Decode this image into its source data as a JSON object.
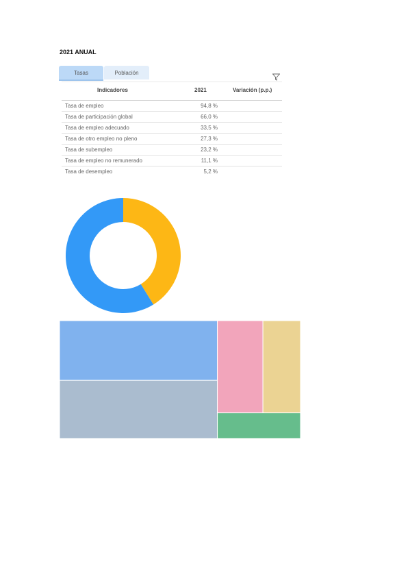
{
  "title": "2021 ANUAL",
  "tabs": [
    {
      "label": "Tasas",
      "active": true
    },
    {
      "label": "Población",
      "active": false
    }
  ],
  "table": {
    "headers": {
      "indicator": "Indicadores",
      "year": "2021",
      "variation": "Variación (p.p.)"
    },
    "rows": [
      {
        "indicator": "Tasa de empleo",
        "value": "94,8 %"
      },
      {
        "indicator": "Tasa de participación global",
        "value": "66,0 %"
      },
      {
        "indicator": "Tasa de empleo adecuado",
        "value": "33,5 %"
      },
      {
        "indicator": "Tasa de otro empleo no pleno",
        "value": "27,3 %"
      },
      {
        "indicator": "Tasa de subempleo",
        "value": "23,2 %"
      },
      {
        "indicator": "Tasa de empleo no remunerado",
        "value": "11,1 %"
      },
      {
        "indicator": "Tasa de desempleo",
        "value": "5,2 %"
      }
    ]
  },
  "colors": {
    "donut_blue": "#3399f7",
    "donut_yellow": "#fdb715",
    "tm_blue": "#80b2ee",
    "tm_gray": "#aabccf",
    "tm_pink": "#f2a5bb",
    "tm_tan": "#ebd393",
    "tm_green": "#66bd8c"
  },
  "chart_data": [
    {
      "type": "pie",
      "variant": "donut",
      "slices": [
        {
          "name": "",
          "value": 41.2,
          "color": "#fdb715"
        },
        {
          "name": "",
          "value": 58.8,
          "color": "#3399f7"
        }
      ]
    },
    {
      "type": "treemap",
      "items": [
        {
          "name": "",
          "value": 33.2,
          "color": "#80b2ee"
        },
        {
          "name": "",
          "value": 32.3,
          "color": "#aabccf"
        },
        {
          "name": "",
          "value": 14.8,
          "color": "#f2a5bb"
        },
        {
          "name": "",
          "value": 12.2,
          "color": "#ebd393"
        },
        {
          "name": "",
          "value": 7.5,
          "color": "#66bd8c"
        }
      ]
    }
  ]
}
